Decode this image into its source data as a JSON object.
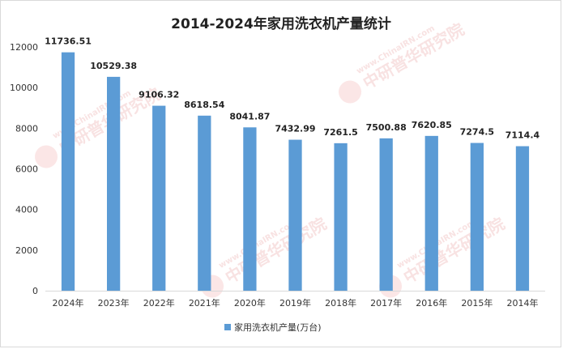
{
  "chart_data": {
    "type": "bar",
    "title": "2014-2024年家用洗衣机产量统计",
    "categories": [
      "2024年",
      "2023年",
      "2022年",
      "2021年",
      "2020年",
      "2019年",
      "2018年",
      "2017年",
      "2016年",
      "2015年",
      "2014年"
    ],
    "series": [
      {
        "name": "家用洗衣机产量(万台)",
        "values": [
          11736.51,
          10529.38,
          9106.32,
          8618.54,
          8041.87,
          7432.99,
          7261.5,
          7500.88,
          7620.85,
          7274.5,
          7114.4
        ],
        "labels": [
          "11736.51",
          "10529.38",
          "9106.32",
          "8618.54",
          "8041.87",
          "7432.99",
          "7261.5",
          "7500.88",
          "7620.85",
          "7274.5",
          "7114.4"
        ],
        "color": "#5b9bd5"
      }
    ],
    "ylim": [
      0,
      12000
    ],
    "yticks": [
      "0",
      "2000",
      "4000",
      "6000",
      "8000",
      "10000",
      "12000"
    ],
    "xlabel": "",
    "ylabel": "",
    "grid": false,
    "legend_position": "bottom"
  },
  "watermark": {
    "logo_text": "CIRN",
    "url_text": "www.ChinaIRN.com",
    "name_text": "中研普华研究院"
  }
}
